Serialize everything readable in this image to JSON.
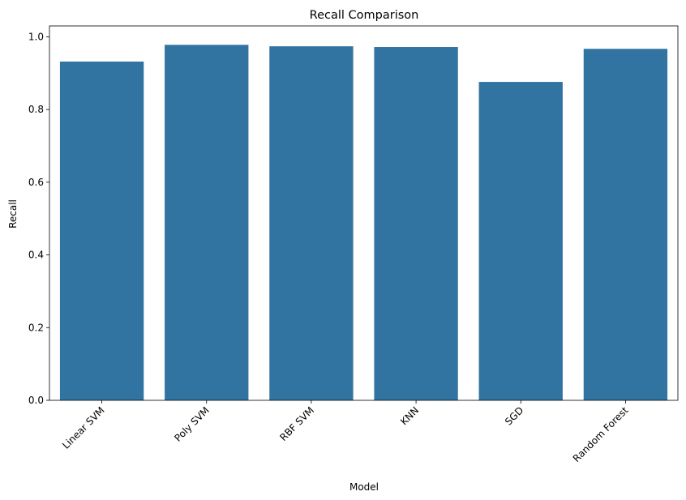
{
  "chart_data": {
    "type": "bar",
    "title": "Recall Comparison",
    "xlabel": "Model",
    "ylabel": "Recall",
    "categories": [
      "Linear SVM",
      "Poly SVM",
      "RBF SVM",
      "KNN",
      "SGD",
      "Random Forest"
    ],
    "values": [
      0.932,
      0.978,
      0.974,
      0.972,
      0.876,
      0.967
    ],
    "ylim": [
      0,
      1.03
    ],
    "yticks": [
      "0.0",
      "0.2",
      "0.4",
      "0.6",
      "0.8",
      "1.0"
    ],
    "xtick_rotation": 45,
    "grid": false,
    "legend": "none",
    "bar_color": "#3274a1"
  }
}
